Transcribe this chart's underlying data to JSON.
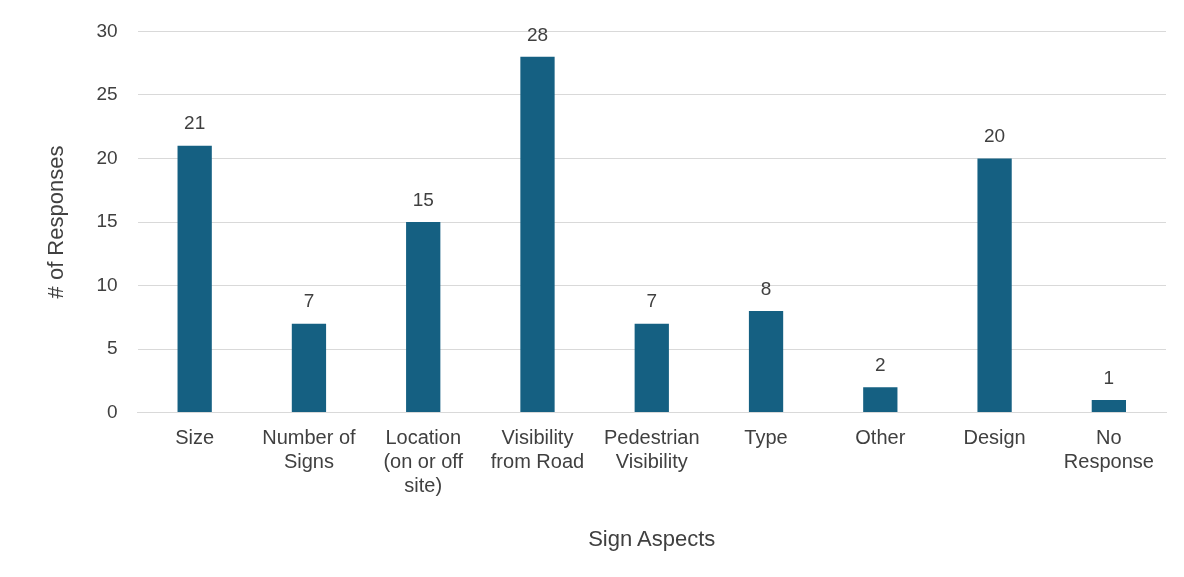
{
  "chart_data": {
    "type": "bar",
    "xlabel": "Sign Aspects",
    "ylabel": "# of Responses",
    "categories": [
      "Size",
      "Number of Signs",
      "Location (on or off site)",
      "Visibility from Road",
      "Pedestrian Visibility",
      "Type",
      "Other",
      "Design",
      "No Response"
    ],
    "values": [
      21,
      7,
      15,
      28,
      7,
      8,
      2,
      20,
      1
    ],
    "color": "#156082",
    "ylim": [
      0,
      30
    ],
    "yticks": [
      0,
      5,
      10,
      15,
      20,
      25,
      30
    ],
    "grid": "y",
    "data_labels": true,
    "legend": false
  }
}
